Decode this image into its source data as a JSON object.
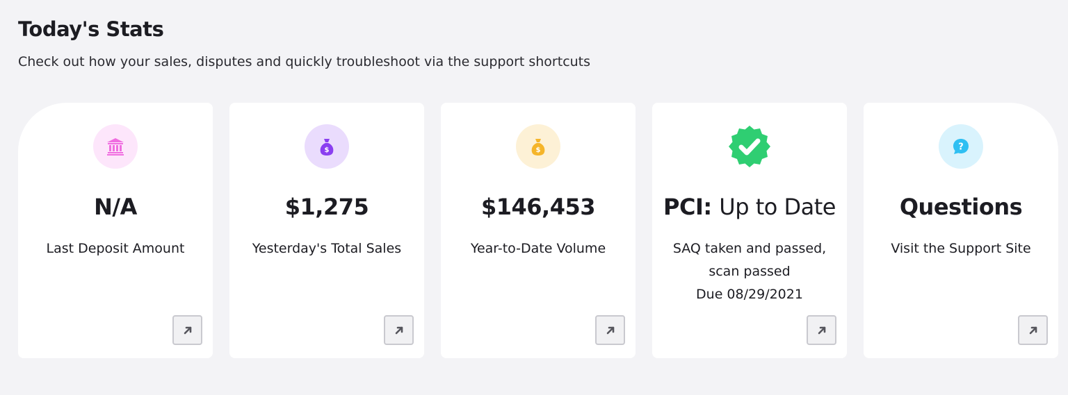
{
  "header": {
    "title": "Today's Stats",
    "subtitle": "Check out how your sales, disputes and quickly troubleshoot via the support shortcuts"
  },
  "cards": [
    {
      "icon": "bank-icon",
      "icon_bg": "#fde6fb",
      "icon_color": "#f06de0",
      "value": "N/A",
      "lines": [
        "Last Deposit Amount"
      ]
    },
    {
      "icon": "money-bag-icon",
      "icon_bg": "#eadcfd",
      "icon_color": "#8a3ff0",
      "value": "$1,275",
      "lines": [
        "Yesterday's Total Sales"
      ]
    },
    {
      "icon": "money-bag-icon",
      "icon_bg": "#fdf1d6",
      "icon_color": "#f5b52a",
      "value": "$146,453",
      "lines": [
        "Year-to-Date Volume"
      ]
    },
    {
      "icon": "verified-check-badge-icon",
      "icon_color": "#2fce72",
      "value_bold": "PCI:",
      "value_light": "Up to Date",
      "lines": [
        "SAQ taken and passed,",
        "scan passed",
        "Due 08/29/2021"
      ]
    },
    {
      "icon": "question-chat-icon",
      "icon_bg": "#d9f3fd",
      "icon_color": "#2fbff2",
      "value": "Questions",
      "lines": [
        "Visit the Support Site"
      ]
    }
  ],
  "link_icon": "arrow-up-right-icon",
  "colors": {
    "page_bg": "#f3f3f6",
    "card_bg": "#ffffff",
    "text": "#1c1c22",
    "link_btn_border": "#c9c9cf"
  }
}
